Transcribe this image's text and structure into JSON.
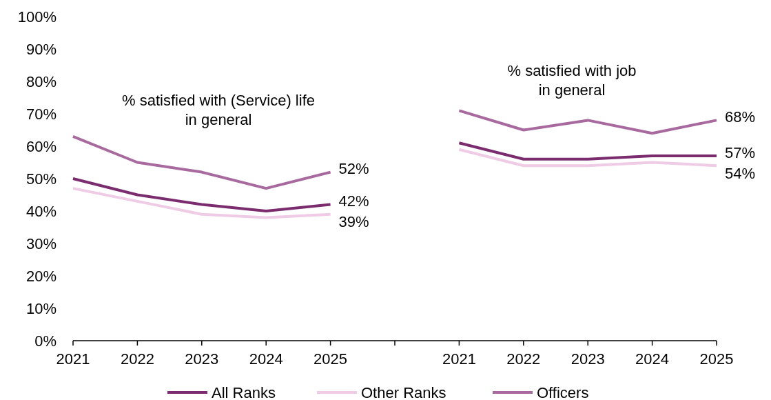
{
  "chart_data": {
    "type": "line",
    "categories": [
      "2021",
      "2022",
      "2023",
      "2024",
      "2025",
      null,
      "2021",
      "2022",
      "2023",
      "2024",
      "2025"
    ],
    "series": [
      {
        "name": "All Ranks",
        "color": "#7b2c6f",
        "values": [
          50,
          45,
          42,
          40,
          42,
          null,
          61,
          56,
          56,
          57,
          57
        ],
        "value_labels": [
          null,
          null,
          null,
          null,
          "42%",
          null,
          null,
          null,
          null,
          null,
          "57%"
        ]
      },
      {
        "name": "Other Ranks",
        "color": "#efcbe6",
        "values": [
          47,
          43,
          39,
          38,
          39,
          null,
          59,
          54,
          54,
          55,
          54
        ],
        "value_labels": [
          null,
          null,
          null,
          null,
          "39%",
          null,
          null,
          null,
          null,
          null,
          "54%"
        ]
      },
      {
        "name": "Officers",
        "color": "#a8699e",
        "values": [
          63,
          55,
          52,
          47,
          52,
          null,
          71,
          65,
          68,
          64,
          68
        ],
        "value_labels": [
          null,
          null,
          null,
          null,
          "52%",
          null,
          null,
          null,
          null,
          null,
          "68%"
        ]
      }
    ],
    "ylim": [
      0,
      100
    ],
    "yticks": [
      {
        "value": 0,
        "label": "0%"
      },
      {
        "value": 10,
        "label": "10%"
      },
      {
        "value": 20,
        "label": "20%"
      },
      {
        "value": 30,
        "label": "30%"
      },
      {
        "value": 40,
        "label": "40%"
      },
      {
        "value": 50,
        "label": "50%"
      },
      {
        "value": 60,
        "label": "60%"
      },
      {
        "value": 70,
        "label": "70%"
      },
      {
        "value": 80,
        "label": "80%"
      },
      {
        "value": 90,
        "label": "90%"
      },
      {
        "value": 100,
        "label": "100%"
      }
    ],
    "annotations": [
      "% satisfied with (Service) life\nin general",
      "% satisfied with job\nin general"
    ],
    "legend": "bottom",
    "grid": false,
    "marker": "none",
    "line_style": "solid"
  }
}
